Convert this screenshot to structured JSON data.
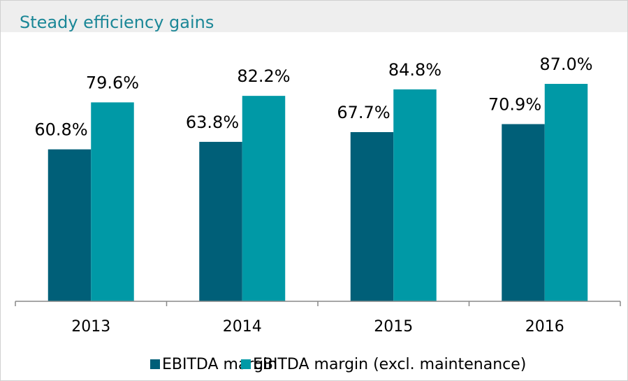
{
  "chart_data": {
    "type": "bar",
    "title": "Steady efficiency gains",
    "categories": [
      "2013",
      "2014",
      "2015",
      "2016"
    ],
    "series": [
      {
        "name": "EBITDA margin",
        "color": "#005f78",
        "values": [
          60.8,
          63.8,
          67.7,
          70.9
        ],
        "value_labels": [
          "60.8%",
          "63.8%",
          "67.7%",
          "70.9%"
        ]
      },
      {
        "name": "EBITDA margin (excl. maintenance)",
        "color": "#0099a6",
        "values": [
          79.6,
          82.2,
          84.8,
          87.0
        ],
        "value_labels": [
          "79.6%",
          "82.2%",
          "84.8%",
          "87.0%"
        ]
      }
    ],
    "ylim": [
      0,
      100
    ],
    "legend": "bottom"
  }
}
